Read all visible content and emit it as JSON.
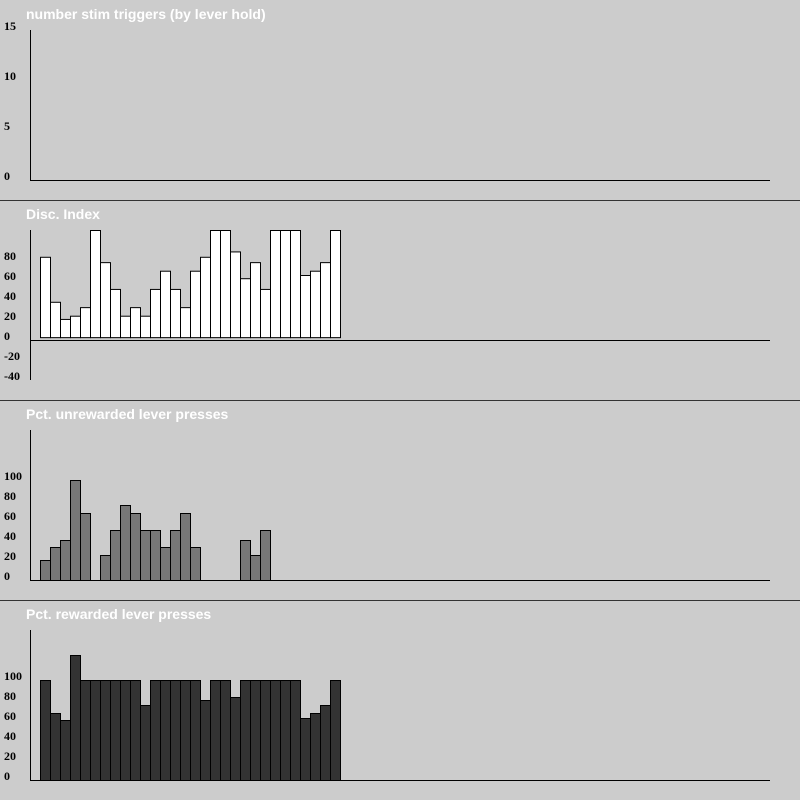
{
  "chart_data": [
    {
      "type": "bar",
      "title": "number stim triggers (by lever hold)",
      "ylim": [
        0,
        15
      ],
      "yticks": [
        "0",
        "5",
        "10",
        "15"
      ],
      "values": [],
      "bar_color": "#ffffff"
    },
    {
      "type": "bar",
      "title": "Disc. Index",
      "ylim": [
        -40,
        100
      ],
      "yticks": [
        "-40",
        "-20",
        "0",
        "20",
        "40",
        "60",
        "80"
      ],
      "values": [
        75,
        33,
        17,
        20,
        28,
        100,
        70,
        45,
        20,
        28,
        20,
        45,
        62,
        45,
        28,
        62,
        75,
        100,
        100,
        80,
        55,
        70,
        45,
        100,
        100,
        100,
        58,
        62,
        70,
        100
      ],
      "bar_color": "#ffffff"
    },
    {
      "type": "bar",
      "title": "Pct. unrewarded lever presses",
      "ylim": [
        0,
        150
      ],
      "yticks": [
        "0",
        "20",
        "40",
        "60",
        "80",
        "100"
      ],
      "values": [
        20,
        33,
        40,
        100,
        67,
        0,
        25,
        50,
        75,
        67,
        50,
        50,
        33,
        50,
        67,
        33,
        0,
        0,
        0,
        0,
        40,
        25,
        50
      ],
      "bar_color": "#777777"
    },
    {
      "type": "bar",
      "title": "Pct. rewarded lever presses",
      "ylim": [
        0,
        150
      ],
      "yticks": [
        "0",
        "20",
        "40",
        "60",
        "80",
        "100"
      ],
      "values": [
        100,
        67,
        60,
        125,
        100,
        100,
        100,
        100,
        100,
        100,
        75,
        100,
        100,
        100,
        100,
        100,
        80,
        100,
        100,
        83,
        100,
        100,
        100,
        100,
        100,
        100,
        62,
        67,
        75,
        100
      ],
      "bar_color": "#333333"
    }
  ]
}
